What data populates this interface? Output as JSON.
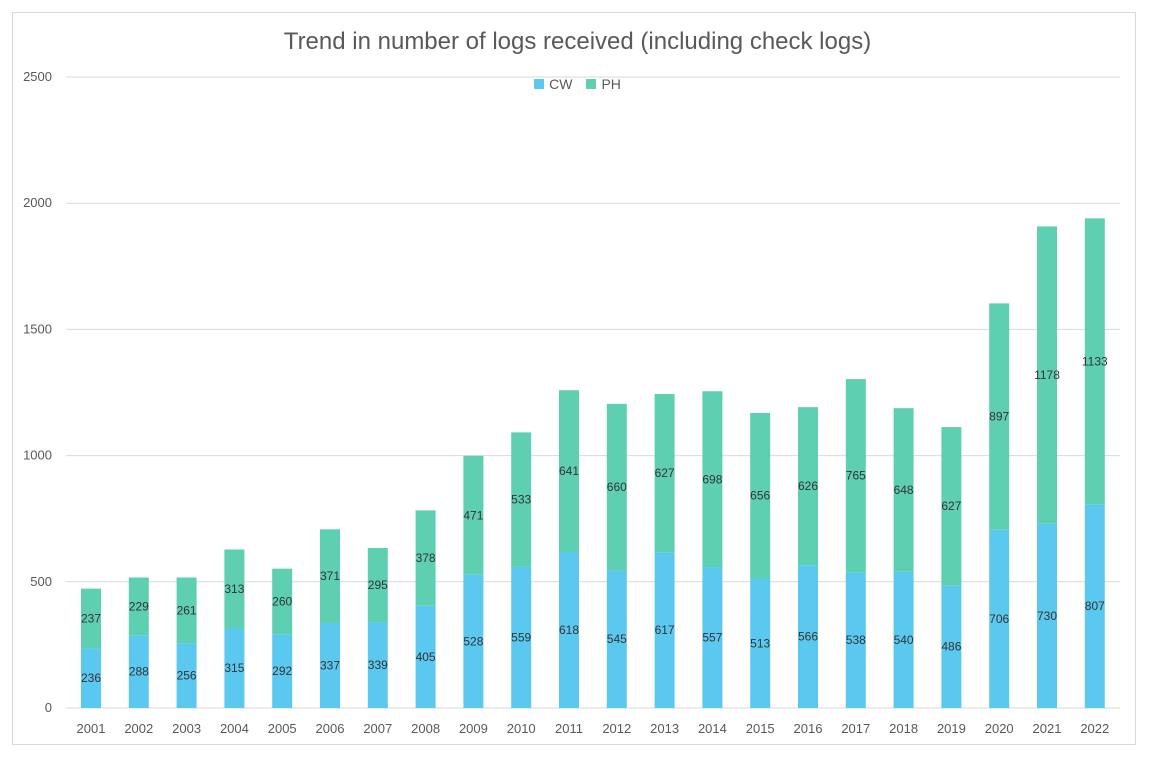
{
  "chart_data": {
    "type": "bar",
    "stacked": true,
    "title": "Trend in number of logs received (including check logs)",
    "xlabel": "",
    "ylabel": "",
    "ylim": [
      0,
      2500
    ],
    "yticks": [
      0,
      500,
      1000,
      1500,
      2000,
      2500
    ],
    "grid": true,
    "legend_position": "top-center",
    "categories": [
      "2001",
      "2002",
      "2003",
      "2004",
      "2005",
      "2006",
      "2007",
      "2008",
      "2009",
      "2010",
      "2011",
      "2012",
      "2013",
      "2014",
      "2015",
      "2016",
      "2017",
      "2018",
      "2019",
      "2020",
      "2021",
      "2022"
    ],
    "series": [
      {
        "name": "CW",
        "color": "#5bc8f0",
        "values": [
          236,
          288,
          256,
          315,
          292,
          337,
          339,
          405,
          528,
          559,
          618,
          545,
          617,
          557,
          513,
          566,
          538,
          540,
          486,
          706,
          730,
          807
        ]
      },
      {
        "name": "PH",
        "color": "#5ecfb1",
        "values": [
          237,
          229,
          261,
          313,
          260,
          371,
          295,
          378,
          471,
          533,
          641,
          660,
          627,
          698,
          656,
          626,
          765,
          648,
          627,
          897,
          1178,
          1133
        ]
      }
    ]
  }
}
